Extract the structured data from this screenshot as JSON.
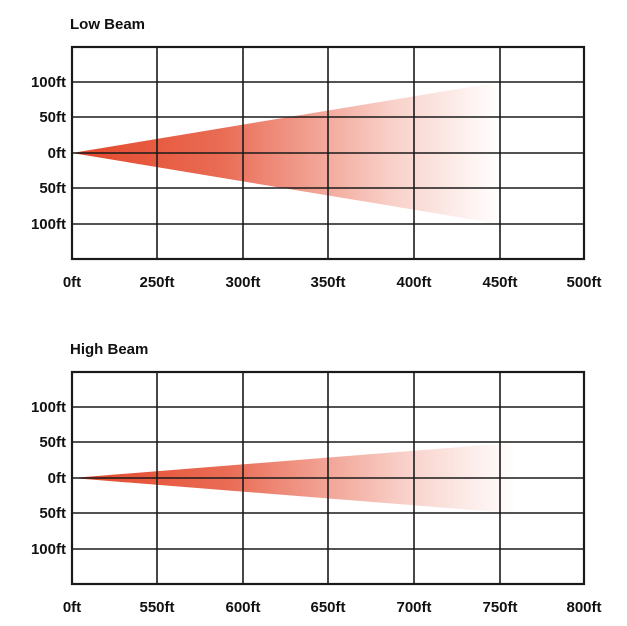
{
  "colors": {
    "beam": "#e4472a",
    "grid": "#1a1a1a",
    "background": "#ffffff"
  },
  "chart_data": [
    {
      "type": "area",
      "title": "Low Beam",
      "x_tick_labels": [
        "0ft",
        "250ft",
        "300ft",
        "350ft",
        "400ft",
        "450ft",
        "500ft"
      ],
      "y_tick_labels": [
        "100ft",
        "50ft",
        "0ft",
        "50ft",
        "100ft"
      ],
      "beam": {
        "reach": 450,
        "half_width_at_reach": 100
      },
      "grid": true
    },
    {
      "type": "area",
      "title": "High Beam",
      "x_tick_labels": [
        "0ft",
        "550ft",
        "600ft",
        "650ft",
        "700ft",
        "750ft",
        "800ft"
      ],
      "y_tick_labels": [
        "100ft",
        "50ft",
        "0ft",
        "50ft",
        "100ft"
      ],
      "beam": {
        "reach": 760,
        "half_width_at_reach": 50
      },
      "grid": true
    }
  ]
}
